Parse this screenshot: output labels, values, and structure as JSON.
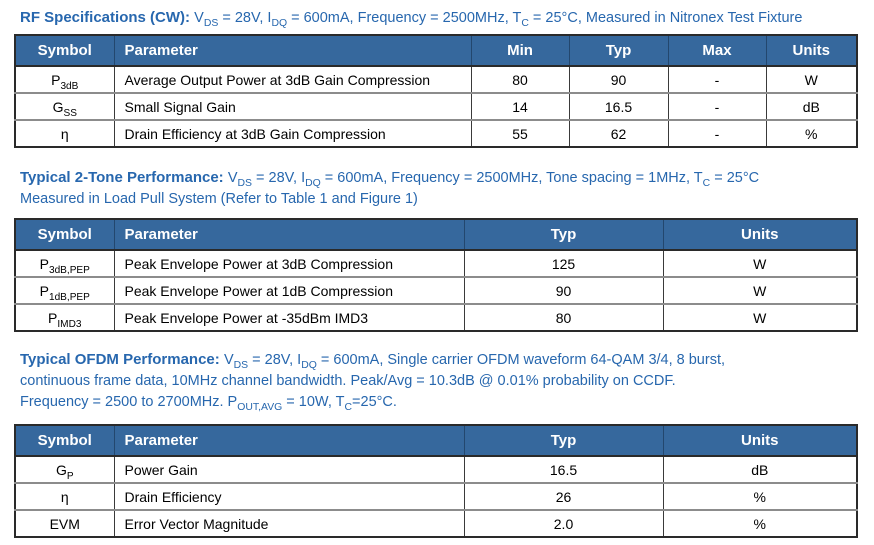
{
  "colors": {
    "table_header_bg": "#36689D",
    "heading_text": "#2767AE",
    "body_text": "#000000",
    "outer_border": "#2a2a2a",
    "row_separator": "#8c8c8c"
  },
  "headings": {
    "rf": {
      "line1": [
        {
          "t": "RF Specifications (CW): ",
          "b": true
        },
        {
          "t": "V"
        },
        {
          "t": "DS",
          "s": true
        },
        {
          "t": " = 28V, I"
        },
        {
          "t": "DQ",
          "s": true
        },
        {
          "t": " = 600mA,  Frequency = 2500MHz, T"
        },
        {
          "t": "C",
          "s": true
        },
        {
          "t": " = 25°C, Measured in Nitronex Test Fixture"
        }
      ]
    },
    "tone": {
      "line1": [
        {
          "t": "Typical 2-Tone Performance: ",
          "b": true
        },
        {
          "t": "V"
        },
        {
          "t": "DS",
          "s": true
        },
        {
          "t": " = 28V, I"
        },
        {
          "t": "DQ",
          "s": true
        },
        {
          "t": " = 600mA, Frequency = 2500MHz, Tone spacing = 1MHz, T"
        },
        {
          "t": "C",
          "s": true
        },
        {
          "t": " = 25°C"
        }
      ],
      "line2": [
        {
          "t": "Measured in Load Pull System (Refer to Table 1 and Figure 1)"
        }
      ]
    },
    "ofdm": {
      "line1": [
        {
          "t": "Typical OFDM Performance: ",
          "b": true
        },
        {
          "t": "V"
        },
        {
          "t": "DS",
          "s": true
        },
        {
          "t": " = 28V, I"
        },
        {
          "t": "DQ",
          "s": true
        },
        {
          "t": " = 600mA, Single carrier OFDM waveform 64-QAM 3/4, 8 burst,"
        }
      ],
      "line2": [
        {
          "t": "continuous frame data, 10MHz channel bandwidth. Peak/Avg = 10.3dB @ 0.01% probability on CCDF."
        }
      ],
      "line3": [
        {
          "t": "Frequency = 2500 to 2700MHz. P"
        },
        {
          "t": "OUT,AVG",
          "s": true
        },
        {
          "t": " = 10W, T"
        },
        {
          "t": "C",
          "s": true
        },
        {
          "t": "=25°C."
        }
      ]
    }
  },
  "tables": [
    {
      "columns": [
        "Symbol",
        "Parameter",
        "Min",
        "Typ",
        "Max",
        "Units"
      ],
      "rows": [
        {
          "symbol_main": "P",
          "symbol_sub": "3dB",
          "parameter": "Average Output Power at 3dB Gain Compression",
          "min": "80",
          "typ": "90",
          "max": "-",
          "units": "W"
        },
        {
          "symbol_main": "G",
          "symbol_sub": "SS",
          "parameter": "Small Signal Gain",
          "min": "14",
          "typ": "16.5",
          "max": "-",
          "units": "dB"
        },
        {
          "symbol_main": "η",
          "symbol_sub": "",
          "parameter": "Drain Efficiency at 3dB Gain Compression",
          "min": "55",
          "typ": "62",
          "max": "-",
          "units": "%"
        }
      ]
    },
    {
      "columns": [
        "Symbol",
        "Parameter",
        "Typ",
        "Units"
      ],
      "rows": [
        {
          "symbol_main": "P",
          "symbol_sub": "3dB,PEP",
          "parameter": "Peak Envelope Power at 3dB Compression",
          "typ": "125",
          "units": "W"
        },
        {
          "symbol_main": "P",
          "symbol_sub": "1dB,PEP",
          "parameter": "Peak Envelope Power at 1dB Compression",
          "typ": "90",
          "units": "W"
        },
        {
          "symbol_main": "P",
          "symbol_sub": "IMD3",
          "parameter": "Peak Envelope Power at -35dBm IMD3",
          "typ": "80",
          "units": "W"
        }
      ]
    },
    {
      "columns": [
        "Symbol",
        "Parameter",
        "Typ",
        "Units"
      ],
      "rows": [
        {
          "symbol_main": "G",
          "symbol_sub": "P",
          "parameter": "Power Gain",
          "typ": "16.5",
          "units": "dB"
        },
        {
          "symbol_main": "η",
          "symbol_sub": "",
          "parameter": "Drain Efficiency",
          "typ": "26",
          "units": "%"
        },
        {
          "symbol_main": "EVM",
          "symbol_sub": "",
          "parameter": "Error Vector Magnitude",
          "typ": "2.0",
          "units": "%"
        }
      ]
    }
  ]
}
